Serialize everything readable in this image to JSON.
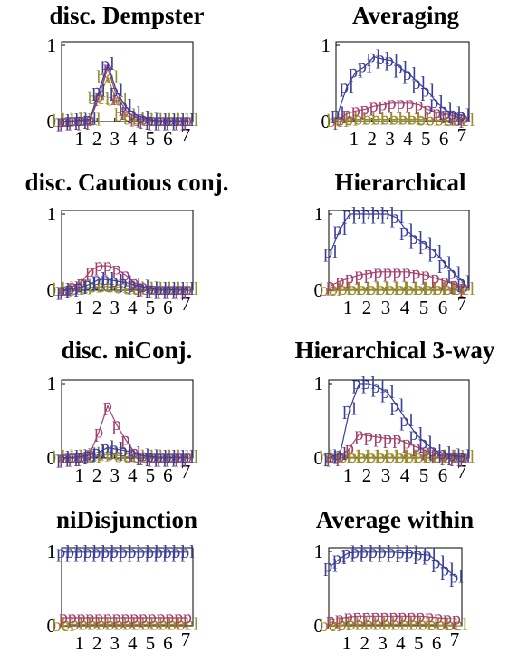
{
  "colors": {
    "pl": "#3a3f9a",
    "p": "#a4406e",
    "bel": "#9a8d2c",
    "frame": "#000000"
  },
  "chart_data": [
    {
      "type": "line",
      "title": "disc. Dempster",
      "x": [
        0,
        0.5,
        1,
        1.5,
        2,
        2.5,
        3,
        3.5,
        4,
        4.5,
        5,
        5.5,
        6,
        6.5,
        7
      ],
      "xticks": [
        "1",
        "2",
        "3",
        "4",
        "5",
        "6",
        "7"
      ],
      "yticks": [
        "0",
        "1"
      ],
      "ylim": [
        0,
        1
      ],
      "series": [
        {
          "name": "pl",
          "values": [
            0,
            0.01,
            0.02,
            0.03,
            0.4,
            0.75,
            0.4,
            0.2,
            0.1,
            0.05,
            0.02,
            0.01,
            0.01,
            0.01,
            0.01
          ]
        },
        {
          "name": "p",
          "values": [
            0,
            0.01,
            0.01,
            0.02,
            0.33,
            0.7,
            0.34,
            0.15,
            0.06,
            0.03,
            0.01,
            0.01,
            0.01,
            0.01,
            0.01
          ]
        },
        {
          "name": "bel",
          "values": [
            0,
            0.01,
            0.01,
            0.02,
            0.3,
            0.58,
            0.28,
            0.08,
            0.03,
            0.01,
            0.01,
            0.01,
            0.01,
            0.01,
            0.01
          ]
        }
      ]
    },
    {
      "type": "line",
      "title": "Averaging",
      "x": [
        0,
        0.5,
        1,
        1.5,
        2,
        2.5,
        3,
        3.5,
        4,
        4.5,
        5,
        5.5,
        6,
        6.5,
        7
      ],
      "xticks": [
        "1",
        "2",
        "3",
        "4",
        "5",
        "6",
        "7"
      ],
      "yticks": [
        "0",
        "1"
      ],
      "ylim": [
        0,
        1
      ],
      "series": [
        {
          "name": "pl",
          "values": [
            0.1,
            0.45,
            0.65,
            0.72,
            0.85,
            0.82,
            0.8,
            0.7,
            0.62,
            0.5,
            0.4,
            0.25,
            0.15,
            0.1,
            0.08
          ]
        },
        {
          "name": "p",
          "values": [
            0.02,
            0.1,
            0.14,
            0.16,
            0.2,
            0.22,
            0.24,
            0.24,
            0.24,
            0.22,
            0.16,
            0.12,
            0.1,
            0.07,
            0.04
          ]
        },
        {
          "name": "bel",
          "values": [
            0,
            0.02,
            0.03,
            0.03,
            0.03,
            0.03,
            0.03,
            0.03,
            0.03,
            0.03,
            0.02,
            0.02,
            0.02,
            0.01,
            0.01
          ]
        }
      ]
    },
    {
      "type": "line",
      "title": "disc. Cautious conj.",
      "x": [
        0,
        0.5,
        1,
        1.5,
        2,
        2.5,
        3,
        3.5,
        4,
        4.5,
        5,
        5.5,
        6,
        6.5,
        7
      ],
      "xticks": [
        "1",
        "2",
        "3",
        "4",
        "5",
        "6",
        "7"
      ],
      "yticks": [
        "0",
        "1"
      ],
      "ylim": [
        0,
        1
      ],
      "series": [
        {
          "name": "pl",
          "values": [
            0,
            0.02,
            0.04,
            0.08,
            0.14,
            0.14,
            0.12,
            0.1,
            0.07,
            0.04,
            0.02,
            0.01,
            0.01,
            0.01,
            0.01
          ]
        },
        {
          "name": "p",
          "values": [
            0,
            0.05,
            0.1,
            0.25,
            0.32,
            0.32,
            0.28,
            0.2,
            0.1,
            0.05,
            0.02,
            0.01,
            0.01,
            0.01,
            0.01
          ]
        },
        {
          "name": "bel",
          "values": [
            0,
            0.01,
            0.02,
            0.04,
            0.05,
            0.05,
            0.04,
            0.03,
            0.02,
            0.01,
            0.01,
            0.01,
            0.01,
            0.01,
            0.01
          ]
        }
      ]
    },
    {
      "type": "line",
      "title": "Hierarchical",
      "x": [
        0,
        0.5,
        1,
        1.5,
        2,
        2.5,
        3,
        3.5,
        4,
        4.5,
        5,
        5.5,
        6,
        6.5,
        7
      ],
      "xticks": [
        "1",
        "2",
        "3",
        "4",
        "5",
        "6",
        "7"
      ],
      "yticks": [
        "0",
        "1"
      ],
      "ylim": [
        0,
        1
      ],
      "series": [
        {
          "name": "pl",
          "values": [
            0.5,
            0.8,
            1,
            1,
            1,
            1,
            1,
            0.95,
            0.78,
            0.68,
            0.6,
            0.5,
            0.35,
            0.22,
            0.1
          ]
        },
        {
          "name": "p",
          "values": [
            0.06,
            0.12,
            0.16,
            0.2,
            0.22,
            0.24,
            0.24,
            0.24,
            0.24,
            0.22,
            0.2,
            0.16,
            0.12,
            0.08,
            0.04
          ]
        },
        {
          "name": "bel",
          "values": [
            0,
            0.01,
            0.01,
            0.01,
            0.01,
            0.01,
            0.01,
            0.01,
            0.01,
            0.01,
            0.01,
            0.01,
            0.01,
            0.01,
            0.01
          ]
        }
      ]
    },
    {
      "type": "line",
      "title": "disc. niConj.",
      "x": [
        0,
        0.5,
        1,
        1.5,
        2,
        2.5,
        3,
        3.5,
        4,
        4.5,
        5,
        5.5,
        6,
        6.5,
        7
      ],
      "xticks": [
        "1",
        "2",
        "3",
        "4",
        "5",
        "6",
        "7"
      ],
      "yticks": [
        "0",
        "1"
      ],
      "ylim": [
        0,
        1
      ],
      "series": [
        {
          "name": "pl",
          "values": [
            0,
            0.01,
            0.02,
            0.04,
            0.08,
            0.14,
            0.12,
            0.1,
            0.06,
            0.03,
            0.02,
            0.01,
            0.01,
            0.01,
            0.01
          ]
        },
        {
          "name": "p",
          "values": [
            0,
            0.01,
            0.02,
            0.06,
            0.35,
            0.7,
            0.45,
            0.25,
            0.08,
            0.03,
            0.01,
            0.01,
            0.01,
            0.01,
            0.01
          ]
        },
        {
          "name": "bel",
          "values": [
            0,
            0.01,
            0.01,
            0.01,
            0.03,
            0.05,
            0.04,
            0.02,
            0.01,
            0.01,
            0.01,
            0.01,
            0.01,
            0.01,
            0.01
          ]
        }
      ]
    },
    {
      "type": "line",
      "title": "Hierarchical 3-way",
      "x": [
        0,
        0.5,
        1,
        1.5,
        2,
        2.5,
        3,
        3.5,
        4,
        4.5,
        5,
        5.5,
        6,
        6.5,
        7
      ],
      "xticks": [
        "1",
        "2",
        "3",
        "4",
        "5",
        "6",
        "7"
      ],
      "yticks": [
        "0",
        "1"
      ],
      "ylim": [
        0,
        1
      ],
      "series": [
        {
          "name": "pl",
          "values": [
            0.02,
            0.05,
            0.65,
            1,
            1,
            0.95,
            0.88,
            0.7,
            0.5,
            0.32,
            0.2,
            0.1,
            0.06,
            0.03,
            0.02
          ]
        },
        {
          "name": "p",
          "values": [
            0.01,
            0.02,
            0.13,
            0.32,
            0.3,
            0.28,
            0.26,
            0.26,
            0.2,
            0.15,
            0.1,
            0.06,
            0.03,
            0.02,
            0.01
          ]
        },
        {
          "name": "bel",
          "values": [
            0,
            0.01,
            0.01,
            0.01,
            0.01,
            0.01,
            0.01,
            0.01,
            0.01,
            0.01,
            0.01,
            0.01,
            0.01,
            0.01,
            0.01
          ]
        }
      ]
    },
    {
      "type": "line",
      "title": "niDisjunction",
      "x": [
        0,
        0.5,
        1,
        1.5,
        2,
        2.5,
        3,
        3.5,
        4,
        4.5,
        5,
        5.5,
        6,
        6.5,
        7
      ],
      "xticks": [
        "1",
        "2",
        "3",
        "4",
        "5",
        "6",
        "7"
      ],
      "yticks": [
        "0",
        "1"
      ],
      "ylim": [
        0,
        1
      ],
      "series": [
        {
          "name": "pl",
          "values": [
            0.99,
            0.99,
            0.99,
            0.99,
            0.99,
            0.99,
            0.99,
            0.99,
            0.99,
            0.99,
            0.99,
            0.99,
            0.99,
            0.99,
            0.99
          ]
        },
        {
          "name": "p",
          "values": [
            0.11,
            0.11,
            0.11,
            0.11,
            0.11,
            0.11,
            0.11,
            0.11,
            0.11,
            0.11,
            0.11,
            0.11,
            0.11,
            0.11,
            0.11
          ]
        },
        {
          "name": "bel",
          "values": [
            0,
            0.02,
            0.02,
            0.02,
            0.02,
            0.02,
            0.02,
            0.02,
            0.02,
            0.02,
            0.02,
            0.02,
            0.02,
            0.02,
            0.02
          ]
        }
      ]
    },
    {
      "type": "line",
      "title": "Average within",
      "x": [
        0,
        0.5,
        1,
        1.5,
        2,
        2.5,
        3,
        3.5,
        4,
        4.5,
        5,
        5.5,
        6,
        6.5,
        7
      ],
      "xticks": [
        "1",
        "2",
        "3",
        "4",
        "5",
        "6",
        "7"
      ],
      "yticks": [
        "0",
        "1"
      ],
      "ylim": [
        0,
        1
      ],
      "series": [
        {
          "name": "pl",
          "values": [
            0.8,
            0.9,
            0.98,
            0.99,
            0.99,
            0.99,
            0.99,
            0.99,
            0.98,
            0.98,
            0.96,
            0.95,
            0.85,
            0.75,
            0.65
          ]
        },
        {
          "name": "p",
          "values": [
            0.08,
            0.1,
            0.12,
            0.13,
            0.13,
            0.13,
            0.13,
            0.13,
            0.13,
            0.13,
            0.13,
            0.12,
            0.11,
            0.1,
            0.09
          ]
        },
        {
          "name": "bel",
          "values": [
            0,
            0.01,
            0.02,
            0.02,
            0.02,
            0.02,
            0.02,
            0.02,
            0.02,
            0.02,
            0.02,
            0.02,
            0.01,
            0.01,
            0.01
          ]
        }
      ]
    }
  ]
}
